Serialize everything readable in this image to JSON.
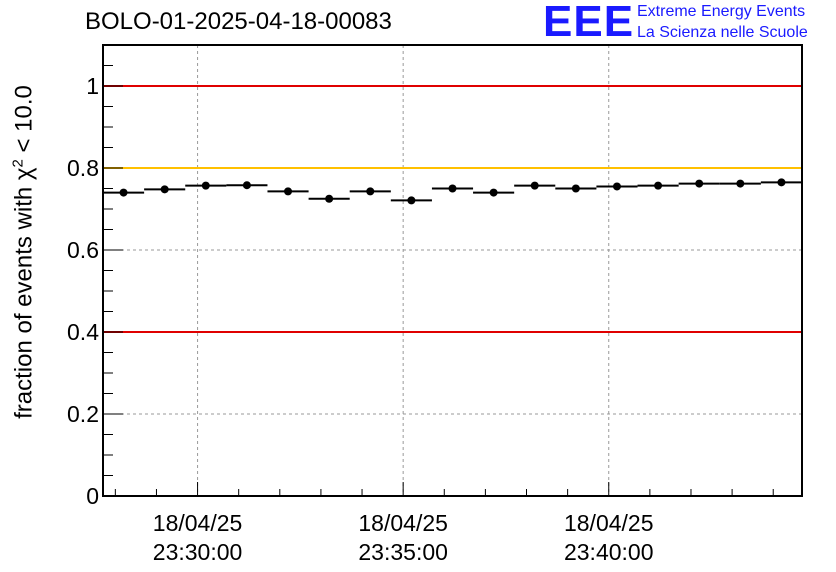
{
  "header": {
    "run_title": "BOLO-01-2025-04-18-00083",
    "logo_mark": "EEE",
    "logo_line1": "Extreme Energy Events",
    "logo_line2": "La Scienza nelle Scuole"
  },
  "axis": {
    "ylabel_prefix": "fraction of events with ",
    "ylabel_symbol": "χ",
    "ylabel_sup": "2",
    "ylabel_suffix": " < 10.0"
  },
  "colors": {
    "limit_red": "#e00000",
    "limit_yellow": "#ffc000",
    "logo_blue": "#1a1aff",
    "grid": "#999999"
  },
  "chart_data": {
    "type": "scatter",
    "title": "BOLO-01-2025-04-18-00083",
    "xlabel": "",
    "ylabel": "fraction of events with χ2 < 10.0",
    "ylim": [
      0,
      1.1
    ],
    "yticks": [
      0,
      0.2,
      0.4,
      0.6,
      0.8,
      1
    ],
    "ytick_labels": [
      "0",
      "0.2",
      "0.4",
      "0.6",
      "0.8",
      "1"
    ],
    "xlim_minutes": [
      -2.3,
      14.7
    ],
    "xticks_minutes": [
      0,
      5,
      10
    ],
    "xtick_labels": [
      [
        "18/04/25",
        "23:30:00"
      ],
      [
        "18/04/25",
        "23:35:00"
      ],
      [
        "18/04/25",
        "23:40:00"
      ]
    ],
    "grid": true,
    "bin_width_minutes": 1.0,
    "points": [
      {
        "x": -1.8,
        "y": 0.74
      },
      {
        "x": -0.8,
        "y": 0.748
      },
      {
        "x": 0.2,
        "y": 0.757
      },
      {
        "x": 1.2,
        "y": 0.758
      },
      {
        "x": 2.2,
        "y": 0.743
      },
      {
        "x": 3.2,
        "y": 0.725
      },
      {
        "x": 4.2,
        "y": 0.743
      },
      {
        "x": 5.2,
        "y": 0.721
      },
      {
        "x": 6.2,
        "y": 0.75
      },
      {
        "x": 7.2,
        "y": 0.74
      },
      {
        "x": 8.2,
        "y": 0.757
      },
      {
        "x": 9.2,
        "y": 0.75
      },
      {
        "x": 10.2,
        "y": 0.755
      },
      {
        "x": 11.2,
        "y": 0.757
      },
      {
        "x": 12.2,
        "y": 0.762
      },
      {
        "x": 13.2,
        "y": 0.762
      },
      {
        "x": 14.2,
        "y": 0.765
      }
    ],
    "reference_lines": [
      {
        "name": "upper-red",
        "y": 1.0,
        "color": "#e00000"
      },
      {
        "name": "yellow",
        "y": 0.8,
        "color": "#ffc000"
      },
      {
        "name": "lower-red",
        "y": 0.4,
        "color": "#e00000"
      }
    ]
  }
}
